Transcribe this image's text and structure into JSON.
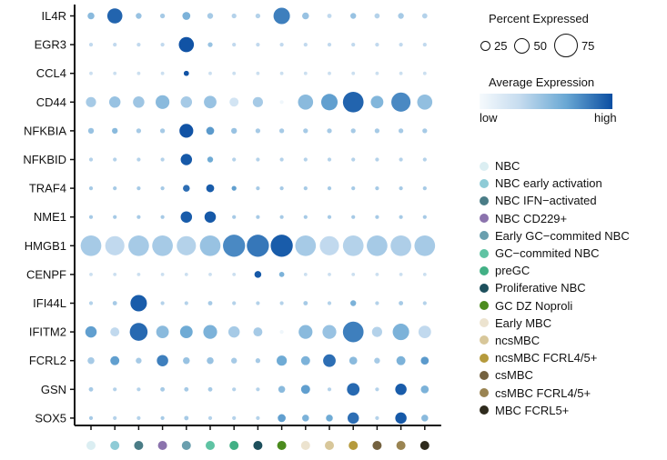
{
  "chart_data": {
    "type": "dotplot",
    "genes": [
      "IL4R",
      "EGR3",
      "CCL4",
      "CD44",
      "NFKBIA",
      "NFKBID",
      "TRAF4",
      "NME1",
      "HMGB1",
      "CENPF",
      "IFI44L",
      "IFITM2",
      "FCRL2",
      "GSN",
      "SOX5"
    ],
    "clusters": [
      {
        "name": "NBC",
        "color": "#dbeef2"
      },
      {
        "name": "NBC early activation",
        "color": "#8ecbd6"
      },
      {
        "name": "NBC IFN−activated",
        "color": "#4a7c86"
      },
      {
        "name": "NBC CD229+",
        "color": "#8b73ad"
      },
      {
        "name": "Early GC−commited NBC",
        "color": "#6a9fae"
      },
      {
        "name": "GC−commited NBC",
        "color": "#5fc3a3"
      },
      {
        "name": "preGC",
        "color": "#42b085"
      },
      {
        "name": "Proliferative NBC",
        "color": "#1d4f5c"
      },
      {
        "name": "GC DZ Noproli",
        "color": "#4b8b1e"
      },
      {
        "name": "Early MBC",
        "color": "#ece3cf"
      },
      {
        "name": "ncsMBC",
        "color": "#d8c79a"
      },
      {
        "name": "ncsMBC FCRL4/5+",
        "color": "#b59a3c"
      },
      {
        "name": "csMBC",
        "color": "#746240"
      },
      {
        "name": "csMBC FCRL4/5+",
        "color": "#9a8452"
      },
      {
        "name": "MBC FCRL5+",
        "color": "#2e2a1c"
      }
    ],
    "pct_expressed": [
      [
        20,
        55,
        15,
        10,
        25,
        15,
        10,
        10,
        60,
        20,
        8,
        15,
        12,
        15,
        12
      ],
      [
        5,
        5,
        5,
        5,
        55,
        10,
        5,
        5,
        5,
        5,
        5,
        5,
        5,
        5,
        5
      ],
      [
        3,
        3,
        3,
        3,
        12,
        3,
        3,
        3,
        3,
        3,
        3,
        3,
        3,
        3,
        3
      ],
      [
        35,
        40,
        40,
        50,
        40,
        45,
        30,
        35,
        5,
        55,
        60,
        75,
        45,
        70,
        55
      ],
      [
        15,
        15,
        10,
        10,
        50,
        25,
        15,
        10,
        10,
        10,
        10,
        10,
        10,
        10,
        10
      ],
      [
        5,
        5,
        5,
        5,
        40,
        15,
        5,
        5,
        5,
        5,
        5,
        5,
        5,
        5,
        5
      ],
      [
        5,
        5,
        5,
        5,
        20,
        25,
        10,
        5,
        5,
        5,
        5,
        5,
        5,
        5,
        5
      ],
      [
        5,
        5,
        5,
        5,
        40,
        40,
        5,
        5,
        5,
        5,
        5,
        5,
        5,
        5,
        5
      ],
      [
        75,
        70,
        75,
        75,
        70,
        75,
        80,
        80,
        80,
        75,
        70,
        75,
        75,
        75,
        75
      ],
      [
        3,
        3,
        3,
        3,
        3,
        3,
        3,
        20,
        12,
        3,
        3,
        3,
        3,
        3,
        3
      ],
      [
        5,
        8,
        60,
        5,
        5,
        8,
        5,
        5,
        5,
        8,
        5,
        15,
        5,
        8,
        5
      ],
      [
        40,
        30,
        65,
        45,
        45,
        50,
        40,
        30,
        5,
        50,
        50,
        75,
        35,
        60,
        45
      ],
      [
        20,
        30,
        15,
        40,
        20,
        20,
        15,
        10,
        35,
        30,
        45,
        25,
        15,
        30,
        25
      ],
      [
        8,
        5,
        5,
        8,
        8,
        8,
        5,
        5,
        20,
        30,
        5,
        45,
        5,
        40,
        25
      ],
      [
        5,
        5,
        5,
        5,
        8,
        5,
        5,
        5,
        25,
        20,
        20,
        40,
        5,
        40,
        20
      ]
    ],
    "avg_expression": [
      [
        0.55,
        0.92,
        0.5,
        0.45,
        0.6,
        0.45,
        0.4,
        0.4,
        0.82,
        0.5,
        0.35,
        0.5,
        0.4,
        0.45,
        0.4
      ],
      [
        0.35,
        0.35,
        0.35,
        0.35,
        0.98,
        0.5,
        0.35,
        0.35,
        0.35,
        0.35,
        0.35,
        0.35,
        0.35,
        0.35,
        0.35
      ],
      [
        0.3,
        0.3,
        0.3,
        0.3,
        0.98,
        0.3,
        0.3,
        0.3,
        0.3,
        0.3,
        0.3,
        0.3,
        0.3,
        0.3,
        0.3
      ],
      [
        0.45,
        0.5,
        0.48,
        0.55,
        0.45,
        0.5,
        0.25,
        0.45,
        0.05,
        0.55,
        0.7,
        0.92,
        0.58,
        0.78,
        0.52
      ],
      [
        0.5,
        0.55,
        0.45,
        0.45,
        0.98,
        0.72,
        0.5,
        0.45,
        0.45,
        0.45,
        0.45,
        0.45,
        0.45,
        0.45,
        0.45
      ],
      [
        0.4,
        0.4,
        0.4,
        0.4,
        0.96,
        0.65,
        0.4,
        0.4,
        0.4,
        0.4,
        0.4,
        0.4,
        0.4,
        0.4,
        0.4
      ],
      [
        0.45,
        0.45,
        0.45,
        0.45,
        0.88,
        0.95,
        0.7,
        0.45,
        0.45,
        0.45,
        0.45,
        0.45,
        0.45,
        0.45,
        0.45
      ],
      [
        0.45,
        0.45,
        0.45,
        0.45,
        0.95,
        0.96,
        0.45,
        0.45,
        0.45,
        0.45,
        0.45,
        0.45,
        0.45,
        0.45,
        0.45
      ],
      [
        0.45,
        0.35,
        0.45,
        0.45,
        0.4,
        0.5,
        0.78,
        0.85,
        0.95,
        0.45,
        0.35,
        0.4,
        0.45,
        0.42,
        0.45
      ],
      [
        0.3,
        0.3,
        0.3,
        0.3,
        0.3,
        0.3,
        0.3,
        0.96,
        0.6,
        0.3,
        0.3,
        0.3,
        0.3,
        0.3,
        0.3
      ],
      [
        0.4,
        0.45,
        0.95,
        0.4,
        0.4,
        0.45,
        0.4,
        0.4,
        0.4,
        0.45,
        0.4,
        0.6,
        0.4,
        0.45,
        0.4
      ],
      [
        0.7,
        0.35,
        0.9,
        0.55,
        0.65,
        0.6,
        0.45,
        0.45,
        0.05,
        0.55,
        0.5,
        0.82,
        0.4,
        0.6,
        0.35
      ],
      [
        0.45,
        0.7,
        0.45,
        0.82,
        0.5,
        0.5,
        0.45,
        0.45,
        0.65,
        0.6,
        0.88,
        0.55,
        0.45,
        0.6,
        0.72
      ],
      [
        0.45,
        0.4,
        0.4,
        0.45,
        0.45,
        0.45,
        0.4,
        0.4,
        0.55,
        0.7,
        0.4,
        0.9,
        0.4,
        0.95,
        0.6
      ],
      [
        0.45,
        0.4,
        0.4,
        0.45,
        0.45,
        0.4,
        0.4,
        0.4,
        0.7,
        0.6,
        0.65,
        0.88,
        0.4,
        0.96,
        0.55
      ]
    ],
    "size_legend_title": "Percent Expressed",
    "size_legend_values": [
      "25",
      "50",
      "75"
    ],
    "color_legend_title": "Average Expression",
    "color_legend_low": "low",
    "color_legend_high": "high",
    "colorscale": [
      "#f6fafd",
      "#c6dcef",
      "#6aa8d4",
      "#0b4ea2"
    ]
  }
}
